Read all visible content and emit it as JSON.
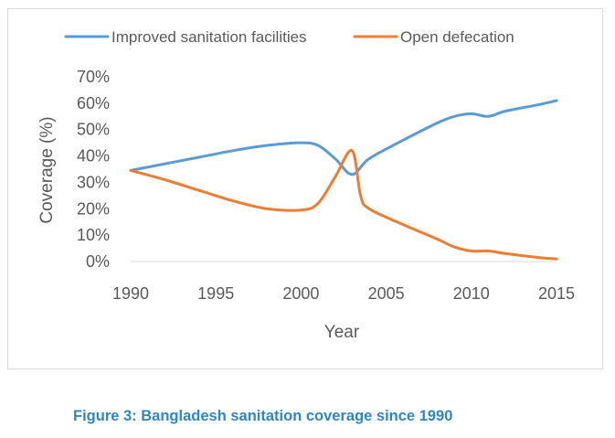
{
  "caption": "Figure 3: Bangladesh sanitation coverage since 1990",
  "chart_data": {
    "type": "line",
    "title": "",
    "xlabel": "Year",
    "ylabel": "Coverage (%)",
    "xlim": [
      1990,
      2015
    ],
    "ylim": [
      0,
      70
    ],
    "x_ticks": [
      "1990",
      "1995",
      "2000",
      "2005",
      "2010",
      "2015"
    ],
    "y_ticks": [
      "0%",
      "10%",
      "20%",
      "30%",
      "40%",
      "50%",
      "60%",
      "70%"
    ],
    "grid": false,
    "legend_position": "top",
    "series": [
      {
        "name": "Improved sanitation facilities",
        "color": "#5b9bd5",
        "x": [
          1990,
          1992,
          1994,
          1996,
          1998,
          2000,
          2001,
          2002,
          2003,
          2004,
          2006,
          2008,
          2009,
          2010,
          2011,
          2012,
          2014,
          2015
        ],
        "y": [
          34.5,
          37,
          39.5,
          42,
          44,
          45,
          44,
          39,
          33,
          39,
          46,
          52.5,
          55,
          56,
          55,
          57,
          59.5,
          61
        ]
      },
      {
        "name": "Open defecation",
        "color": "#ed7d31",
        "x": [
          1990,
          1992,
          1994,
          1996,
          1998,
          2000,
          2001,
          2002,
          2003,
          2003.5,
          2004,
          2006,
          2008,
          2009,
          2010,
          2011,
          2012,
          2014,
          2015
        ],
        "y": [
          34.5,
          31,
          27,
          23,
          20,
          19.5,
          22,
          32,
          42,
          25,
          20,
          14,
          8.5,
          5.5,
          4,
          4,
          3,
          1.5,
          1
        ]
      }
    ]
  }
}
